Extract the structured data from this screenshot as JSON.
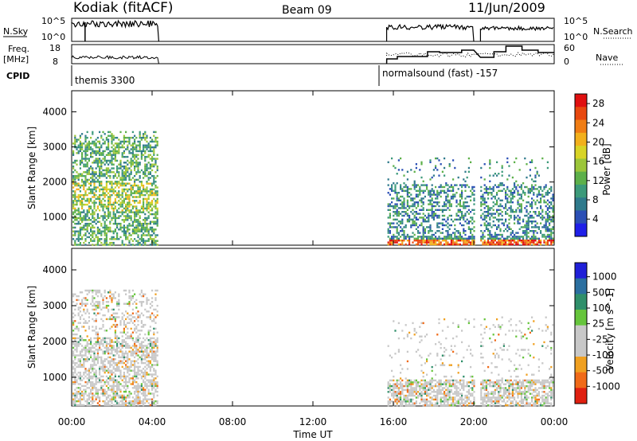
{
  "header": {
    "radar": "Kodiak (fitACF)",
    "beam": "Beam 09",
    "date": "11/Jun/2009"
  },
  "panels": {
    "nsky_label": "N.Sky",
    "nsearch_label": "N.Search",
    "freq_label": "Freq.",
    "freq_unit": "[MHz]",
    "nave_label": "Nave",
    "cpid_label": "CPID",
    "nsky_ticks": [
      "10^5",
      "10^0"
    ],
    "nsearch_ticks": [
      "10^5",
      "10^0"
    ],
    "freq_ticks": [
      "18",
      "8"
    ],
    "nave_ticks": [
      "60",
      "0"
    ]
  },
  "cpid": [
    {
      "label": "themis 3300",
      "start": "00:00",
      "end": "04:20"
    },
    {
      "label": "normalsound (fast) -157",
      "start": "15:40",
      "end": "24:00"
    }
  ],
  "chart_data": [
    {
      "type": "heatmap",
      "title": "",
      "xlabel": "Time UT",
      "ylabel": "Slant Range [km]",
      "xlim": [
        "00:00",
        "24:00"
      ],
      "ylim": [
        200,
        4600
      ],
      "x_ticks": [
        "00:00",
        "04:00",
        "08:00",
        "12:00",
        "16:00",
        "20:00",
        "00:00"
      ],
      "y_ticks": [
        1000,
        2000,
        3000,
        4000
      ],
      "colorbar": {
        "label": "Power [dB]",
        "ticks": [
          4,
          8,
          12,
          16,
          20,
          24,
          28
        ],
        "colors": [
          "#1f1fe8",
          "#2b4fb5",
          "#2f7a8c",
          "#3c9a7a",
          "#5db04a",
          "#9cc63a",
          "#d8d426",
          "#f2b01c",
          "#f07d14",
          "#e8480f",
          "#e01010"
        ]
      },
      "data_intervals": [
        [
          "00:00",
          "04:20"
        ],
        [
          "15:40",
          "20:00"
        ],
        [
          "20:20",
          "24:00"
        ]
      ],
      "features": [
        {
          "start": "00:00",
          "end": "04:20",
          "range_min": 200,
          "range_max": 3450,
          "dominant_db": "8-16"
        },
        {
          "start": "15:40",
          "end": "24:00",
          "range_min": 200,
          "range_max": 2700,
          "dominant_db": "4-28"
        }
      ]
    },
    {
      "type": "heatmap",
      "title": "",
      "xlabel": "Time UT",
      "ylabel": "Slant Range [km]",
      "xlim": [
        "00:00",
        "24:00"
      ],
      "ylim": [
        200,
        4600
      ],
      "x_ticks": [
        "00:00",
        "04:00",
        "08:00",
        "12:00",
        "16:00",
        "20:00",
        "00:00"
      ],
      "y_ticks": [
        1000,
        2000,
        3000,
        4000
      ],
      "colorbar": {
        "label": "Velocity [m s^-1]",
        "ticks": [
          1000,
          500,
          100,
          25,
          -25,
          -100,
          -500,
          -1000
        ],
        "colors": [
          "#2020d8",
          "#2b6fa0",
          "#2f8f6a",
          "#66c53c",
          "#c8c8c8",
          "#c8c8c8",
          "#f0a020",
          "#f06a18",
          "#e02010"
        ]
      },
      "data_intervals": [
        [
          "00:00",
          "04:20"
        ],
        [
          "15:40",
          "20:00"
        ],
        [
          "20:20",
          "24:00"
        ]
      ],
      "features": [
        {
          "start": "00:00",
          "end": "04:20",
          "range_min": 200,
          "range_max": 3450,
          "dominant_velocity": "-25..25"
        },
        {
          "start": "15:40",
          "end": "24:00",
          "range_min": 200,
          "range_max": 2700,
          "dominant_velocity": "-25..25"
        }
      ]
    }
  ]
}
